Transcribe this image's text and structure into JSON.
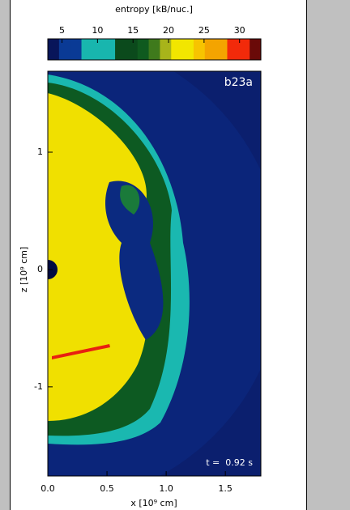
{
  "chart_data": {
    "type": "heatmap",
    "title": "entropy [kB/nuc.]",
    "colorbar": {
      "colors": [
        "#08155a",
        "#0a3a95",
        "#0a3a95",
        "#18b6ae",
        "#18b6ae",
        "#18b6ae",
        "#0b4a1c",
        "#0b4a1c",
        "#0f5a1f",
        "#3f7a1c",
        "#a8b41a",
        "#f2e600",
        "#f2e600",
        "#f7c400",
        "#f4a400",
        "#f4a400",
        "#f22a0a",
        "#f22a0a",
        "#6a0a08"
      ],
      "lim": [
        3,
        33
      ],
      "ticks": [
        5,
        10,
        15,
        20,
        25,
        30
      ]
    },
    "model": "b23a",
    "annotation": "t =  0.92 s",
    "x_label": "x [10⁹ cm]",
    "y_label": "z [10⁹ cm]",
    "xlim": [
      0,
      1.8
    ],
    "ylim": [
      -1.76,
      1.69
    ],
    "xticks": [
      {
        "value": 0,
        "label": "0.0"
      },
      {
        "value": 0.5,
        "label": "0.5"
      },
      {
        "value": 1,
        "label": "1.0"
      },
      {
        "value": 1.5,
        "label": "1.5"
      }
    ],
    "yticks": [
      -1,
      0,
      1
    ]
  }
}
